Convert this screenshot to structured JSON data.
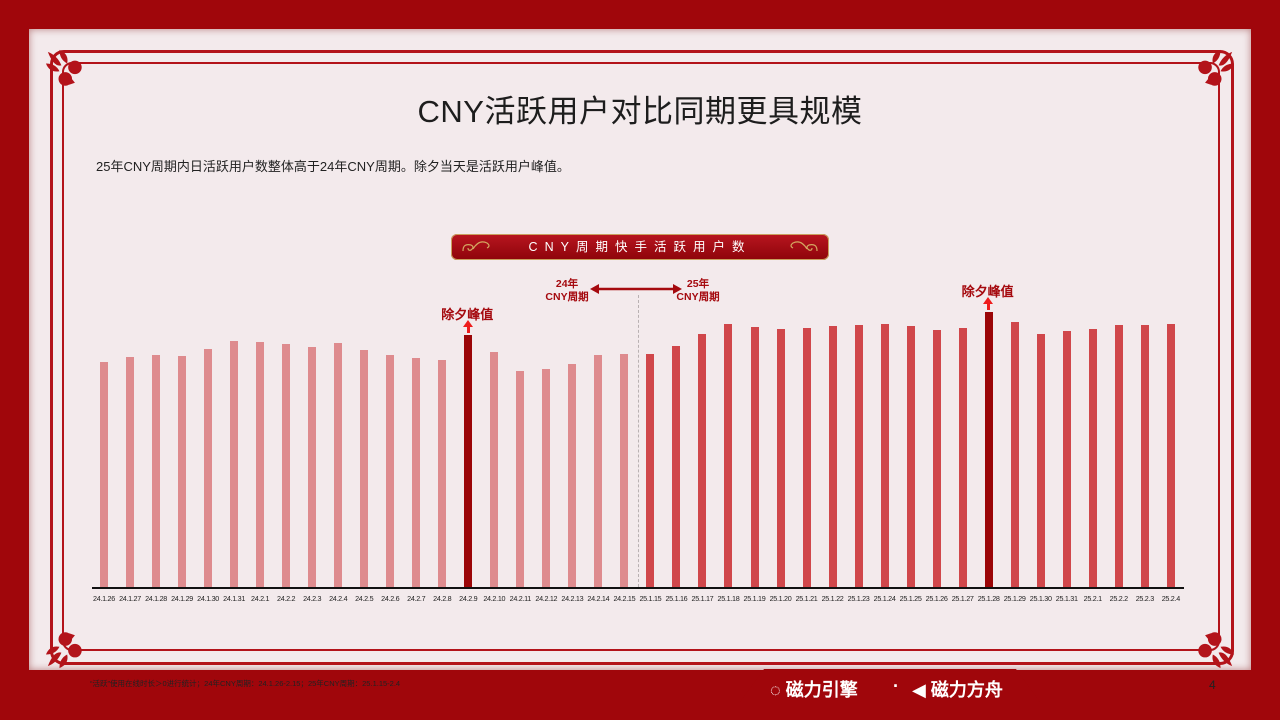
{
  "page": {
    "title": "CNY活跃用户对比同期更具规模",
    "subtitle": "25年CNY周期内日活跃用户数整体高于24年CNY周期。除夕当天是活跃用户峰值。",
    "footnote": "“活跃”使用在线时长＞0进行统计；24年CNY周期：24.1.26-2.15；25年CNY周期：25.1.15-2.4",
    "page_number": "4",
    "logos": {
      "left": "磁力引擎",
      "separator": "·",
      "right": "磁力方舟"
    }
  },
  "colors": {
    "frame": "#a0060b",
    "background": "#f3eaec",
    "bar_2024": "#de8b8e",
    "bar_2025": "#d0474b",
    "bar_peak": "#9b0608",
    "annotation": "#a50a0f",
    "arrow": "#ee1c1c"
  },
  "chart_data": {
    "type": "bar",
    "title": "CNY周期快手活跃用户数",
    "xlabel": "",
    "ylabel": "",
    "grid": false,
    "y_axis_shown": false,
    "value_unit": "relative bar height (px), no axis scale shown",
    "categories": [
      "24.1.26",
      "24.1.27",
      "24.1.28",
      "24.1.29",
      "24.1.30",
      "24.1.31",
      "24.2.1",
      "24.2.2",
      "24.2.3",
      "24.2.4",
      "24.2.5",
      "24.2.6",
      "24.2.7",
      "24.2.8",
      "24.2.9",
      "24.2.10",
      "24.2.11",
      "24.2.12",
      "24.2.13",
      "24.2.14",
      "24.2.15",
      "25.1.15",
      "25.1.16",
      "25.1.17",
      "25.1.18",
      "25.1.19",
      "25.1.20",
      "25.1.21",
      "25.1.22",
      "25.1.23",
      "25.1.24",
      "25.1.25",
      "25.1.26",
      "25.1.27",
      "25.1.28",
      "25.1.29",
      "25.1.30",
      "25.1.31",
      "25.2.1",
      "25.2.2",
      "25.2.3",
      "25.2.4"
    ],
    "series": [
      {
        "name": "24年CNY周期",
        "values": [
          225,
          230,
          232,
          231,
          238,
          246,
          245,
          243,
          240,
          244,
          237,
          232,
          229,
          227,
          252,
          235,
          216,
          218,
          223,
          232,
          233,
          null,
          null,
          null,
          null,
          null,
          null,
          null,
          null,
          null,
          null,
          null,
          null,
          null,
          null,
          null,
          null,
          null,
          null,
          null,
          null,
          null
        ]
      },
      {
        "name": "25年CNY周期",
        "values": [
          null,
          null,
          null,
          null,
          null,
          null,
          null,
          null,
          null,
          null,
          null,
          null,
          null,
          null,
          null,
          null,
          null,
          null,
          null,
          null,
          null,
          233,
          241,
          253,
          263,
          260,
          258,
          259,
          261,
          262,
          263,
          261,
          257,
          259,
          275,
          265,
          253,
          256,
          258,
          262,
          262,
          263
        ]
      }
    ],
    "peaks": [
      {
        "category": "24.2.9",
        "label": "除夕峰值"
      },
      {
        "category": "25.1.28",
        "label": "除夕峰值"
      }
    ],
    "annotations": {
      "cycle_2024": [
        "24年",
        "CNY周期"
      ],
      "cycle_2025": [
        "25年",
        "CNY周期"
      ],
      "arrow": "double-headed"
    }
  }
}
